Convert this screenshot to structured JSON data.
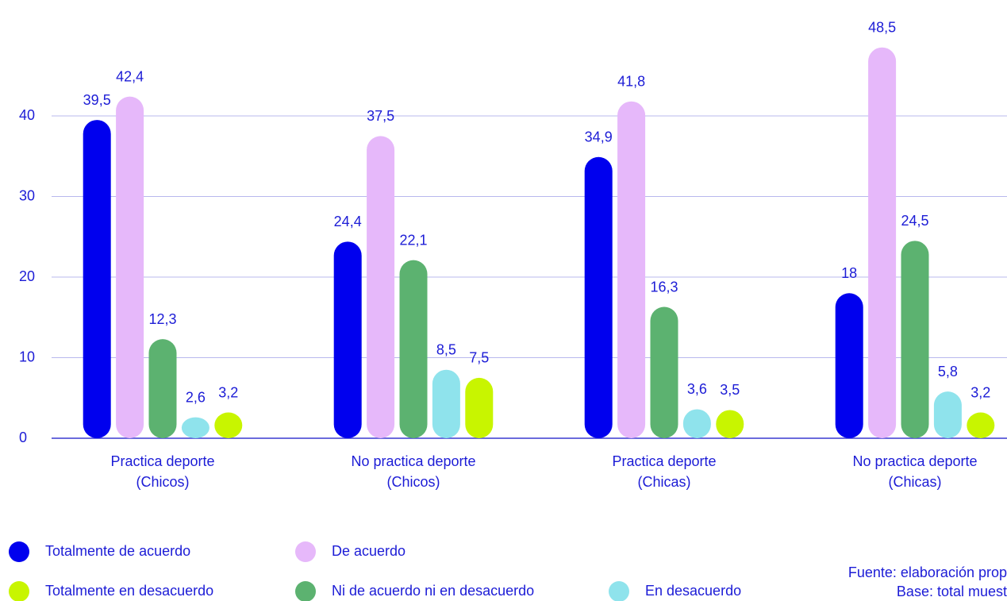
{
  "chart_data": {
    "type": "bar",
    "categories": [
      [
        "Practica deporte",
        "(Chicos)"
      ],
      [
        "No practica deporte",
        "(Chicos)"
      ],
      [
        "Practica deporte",
        "(Chicas)"
      ],
      [
        "No practica deporte",
        "(Chicas)"
      ]
    ],
    "series": [
      {
        "name": "Totalmente de acuerdo",
        "color": "#0000ee",
        "values": [
          39.5,
          24.4,
          34.9,
          18
        ],
        "value_labels": [
          "39,5",
          "24,4",
          "34,9",
          "18"
        ]
      },
      {
        "name": "De acuerdo",
        "color": "#e6b8fa",
        "values": [
          42.4,
          37.5,
          41.8,
          48.5
        ],
        "value_labels": [
          "42,4",
          "37,5",
          "41,8",
          "48,5"
        ]
      },
      {
        "name": "Ni de acuerdo ni en desacuerdo",
        "color": "#5cb270",
        "values": [
          12.3,
          22.1,
          16.3,
          24.5
        ],
        "value_labels": [
          "12,3",
          "22,1",
          "16,3",
          "24,5"
        ]
      },
      {
        "name": "En desacuerdo",
        "color": "#8fe3ec",
        "values": [
          2.6,
          8.5,
          3.6,
          5.8
        ],
        "value_labels": [
          "2,6",
          "8,5",
          "3,6",
          "5,8"
        ]
      },
      {
        "name": "Totalmente en desacuerdo",
        "color": "#c8f500",
        "values": [
          3.2,
          7.5,
          3.5,
          3.2
        ],
        "value_labels": [
          "3,2",
          "7,5",
          "3,5",
          "3,2"
        ]
      }
    ],
    "ylim": [
      0,
      50
    ],
    "yticks": [
      0,
      10,
      20,
      30,
      40
    ],
    "grid": true,
    "source": [
      "Fuente: elaboración prop",
      "Base: total muest"
    ]
  }
}
